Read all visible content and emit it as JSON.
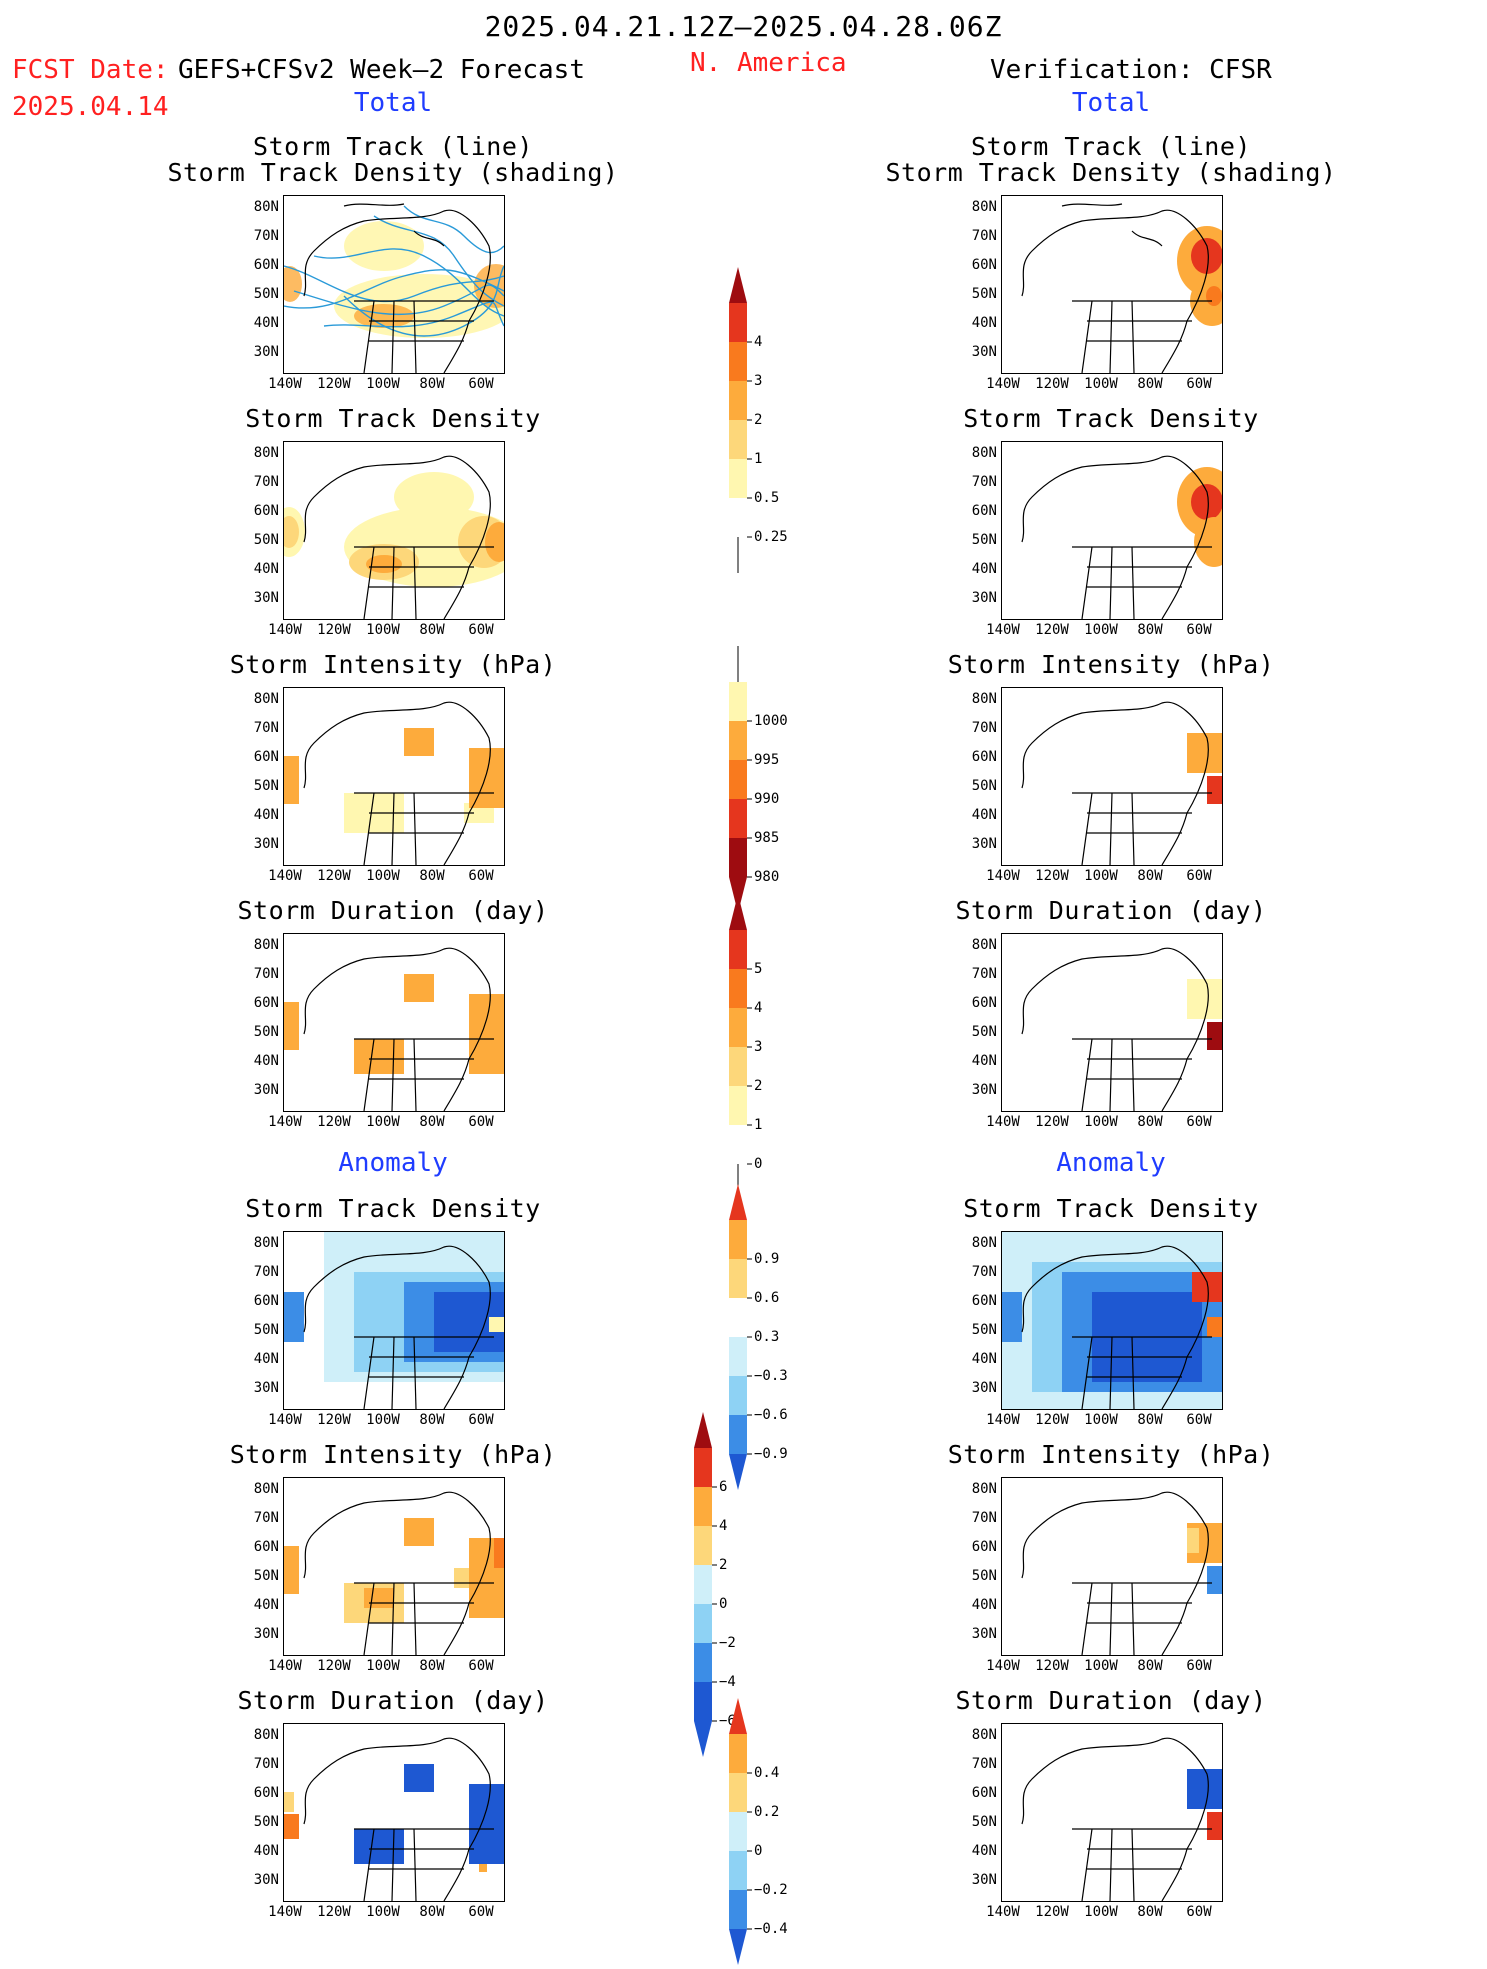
{
  "header": {
    "date_range": "2025.04.21.12Z–2025.04.28.06Z",
    "region": "N. America",
    "fcst_prefix": "FCST Date:",
    "fcst_model": "GEFS+CFSv2 Week–2 Forecast",
    "fcst_date": "2025.04.14",
    "verification": "Verification: CFSR"
  },
  "sections": {
    "total_left": "Total",
    "total_right": "Total",
    "anomaly_left": "Anomaly",
    "anomaly_right": "Anomaly"
  },
  "titles": {
    "track_line": "Storm Track (line)",
    "track_shading": "Storm Track Density (shading)",
    "density": "Storm Track Density",
    "intensity": "Storm Intensity (hPa)",
    "duration": "Storm Duration (day)"
  },
  "axes": {
    "lat": [
      "80N",
      "70N",
      "60N",
      "50N",
      "40N",
      "30N"
    ],
    "lon": [
      "140W",
      "120W",
      "100W",
      "80W",
      "60W"
    ]
  },
  "colorbars": {
    "density": [
      "4",
      "3",
      "2",
      "1",
      "0.5",
      "0.25"
    ],
    "intensity": [
      "1000",
      "995",
      "990",
      "985",
      "980"
    ],
    "duration": [
      "5",
      "4",
      "3",
      "2",
      "1",
      "0"
    ],
    "density_anom": [
      "0.9",
      "0.6",
      "0.3",
      "−0.3",
      "−0.6",
      "−0.9"
    ],
    "intensity_anom": [
      "6",
      "4",
      "2",
      "0",
      "−2",
      "−4",
      "−6"
    ],
    "duration_anom": [
      "0.4",
      "0.2",
      "0",
      "−0.2",
      "−0.4"
    ]
  },
  "colors": {
    "light_yellow": "#fff7b0",
    "yellow": "#fdd77a",
    "orange": "#fdab3c",
    "dark_orange": "#f97a1e",
    "red": "#e5361e",
    "dark_red": "#9e0c10",
    "light_blue": "#cfeff9",
    "sky_blue": "#8ed2f4",
    "blue": "#3c8de6",
    "dark_blue": "#1e58d2",
    "track_line": "#2a9ad8"
  }
}
